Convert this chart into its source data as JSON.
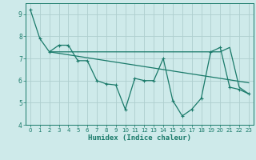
{
  "series": [
    {
      "x": [
        0,
        1,
        2,
        3,
        4,
        5,
        6,
        7,
        8,
        9,
        10,
        11,
        12,
        13,
        14,
        15,
        16,
        17,
        18,
        19,
        20,
        21,
        22,
        23
      ],
      "y": [
        9.2,
        7.9,
        7.3,
        7.6,
        7.6,
        6.9,
        6.9,
        6.0,
        5.85,
        5.8,
        4.7,
        6.1,
        6.0,
        6.0,
        7.0,
        5.1,
        4.4,
        4.7,
        5.2,
        7.3,
        7.5,
        5.7,
        5.6,
        5.4
      ],
      "color": "#1a7a6a",
      "linewidth": 0.9,
      "marker": "+"
    },
    {
      "x": [
        2,
        20,
        21,
        22,
        23
      ],
      "y": [
        7.3,
        7.3,
        7.5,
        5.7,
        5.4
      ],
      "color": "#1a7a6a",
      "linewidth": 0.9
    },
    {
      "x": [
        2,
        23
      ],
      "y": [
        7.3,
        5.9
      ],
      "color": "#1a7a6a",
      "linewidth": 0.9
    }
  ],
  "xlim": [
    -0.5,
    23.5
  ],
  "ylim": [
    4.0,
    9.5
  ],
  "yticks": [
    4,
    5,
    6,
    7,
    8,
    9
  ],
  "xticks": [
    0,
    1,
    2,
    3,
    4,
    5,
    6,
    7,
    8,
    9,
    10,
    11,
    12,
    13,
    14,
    15,
    16,
    17,
    18,
    19,
    20,
    21,
    22,
    23
  ],
  "xlabel": "Humidex (Indice chaleur)",
  "background_color": "#ceeaea",
  "grid_color": "#aecece",
  "line_color": "#1a7a6a",
  "tick_color": "#1a7a6a",
  "label_color": "#1a7a6a",
  "font_size_xlabel": 6.5,
  "font_size_ticks": 5.5
}
